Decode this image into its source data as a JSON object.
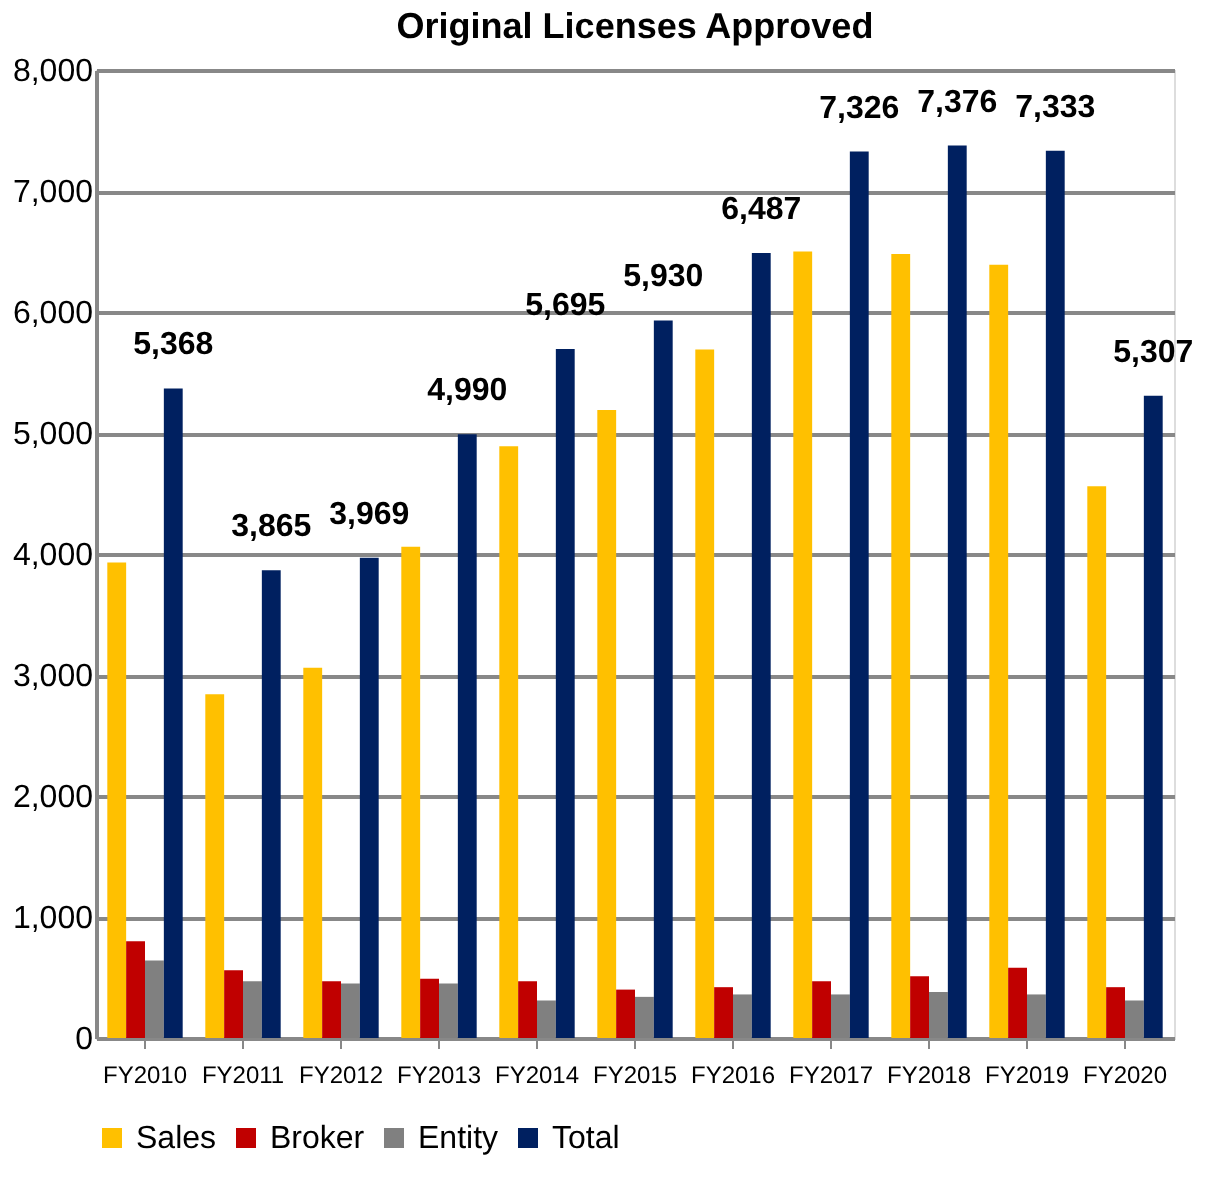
{
  "chart_data": {
    "type": "bar",
    "title": "Original Licenses Approved",
    "categories": [
      "FY2010",
      "FY2011",
      "FY2012",
      "FY2013",
      "FY2014",
      "FY2015",
      "FY2016",
      "FY2017",
      "FY2018",
      "FY2019",
      "FY2020"
    ],
    "series": [
      {
        "name": "Sales",
        "color": "#ffc000",
        "values": [
          3930,
          2840,
          3060,
          4060,
          4890,
          5190,
          5690,
          6500,
          6480,
          6390,
          4560
        ]
      },
      {
        "name": "Broker",
        "color": "#c00000",
        "values": [
          800,
          560,
          470,
          490,
          470,
          400,
          420,
          470,
          510,
          580,
          420
        ]
      },
      {
        "name": "Entity",
        "color": "#808080",
        "values": [
          640,
          470,
          450,
          450,
          310,
          340,
          360,
          360,
          380,
          360,
          310
        ]
      },
      {
        "name": "Total",
        "color": "#002060",
        "values": [
          5368,
          3865,
          3969,
          4990,
          5695,
          5930,
          6487,
          7326,
          7376,
          7333,
          5307
        ],
        "value_labels": [
          "5,368",
          "3,865",
          "3,969",
          "4,990",
          "5,695",
          "5,930",
          "6,487",
          "7,326",
          "7,376",
          "7,333",
          "5,307"
        ]
      }
    ],
    "ylim": [
      0,
      8000
    ],
    "yticks": [
      {
        "value": 0,
        "label": "0"
      },
      {
        "value": 1000,
        "label": "1,000"
      },
      {
        "value": 2000,
        "label": "2,000"
      },
      {
        "value": 3000,
        "label": "3,000"
      },
      {
        "value": 4000,
        "label": "4,000"
      },
      {
        "value": 5000,
        "label": "5,000"
      },
      {
        "value": 6000,
        "label": "6,000"
      },
      {
        "value": 7000,
        "label": "7,000"
      },
      {
        "value": 8000,
        "label": "8,000"
      }
    ],
    "grid": "y",
    "legend": "bottom"
  }
}
